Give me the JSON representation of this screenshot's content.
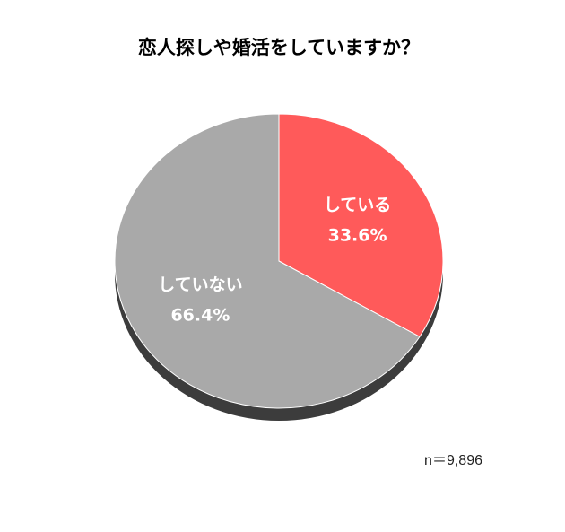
{
  "chart_data": {
    "type": "pie",
    "title": "恋人探しや婚活をしていますか？",
    "categories": [
      "している",
      "していない"
    ],
    "values": [
      33.6,
      66.4
    ],
    "value_labels": [
      "33.6%",
      "66.4%"
    ],
    "colors": [
      "#ff5a5a",
      "#a9a9a9"
    ],
    "note": "n＝9,896"
  }
}
